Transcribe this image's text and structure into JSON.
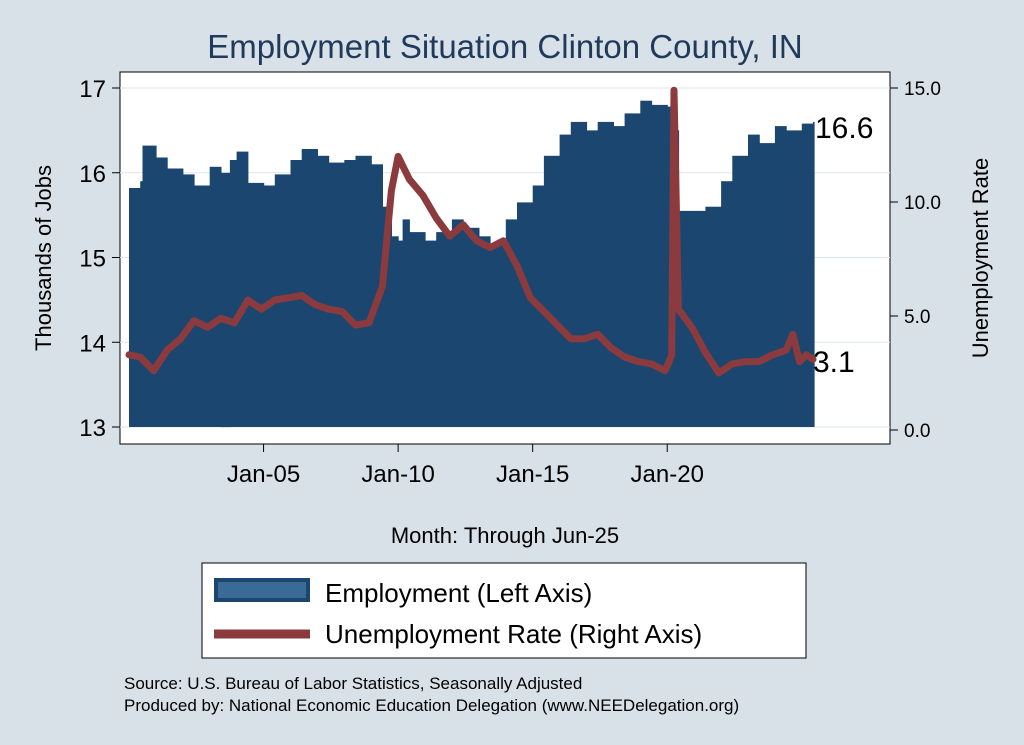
{
  "chart_data": {
    "type": "bar",
    "title": "Employment Situation Clinton  County, IN",
    "xlabel": "Month: Through Jun-25",
    "ylabel_left": "Thousands of Jobs",
    "ylabel_right": "Unemployment Rate",
    "x_ticks": [
      "Jan-05",
      "Jan-10",
      "Jan-15",
      "Jan-20"
    ],
    "y_left_ticks": [
      "13",
      "14",
      "15",
      "16",
      "17"
    ],
    "y_left_range": [
      13,
      17
    ],
    "y_right_ticks": [
      "0.0",
      "5.0",
      "10.0",
      "15.0"
    ],
    "y_right_range": [
      0,
      15
    ],
    "x_range": [
      "2000-01",
      "2025-06"
    ],
    "grid": true,
    "legend_position": "bottom",
    "series": [
      {
        "name": "Employment (Left Axis)",
        "type": "bar",
        "axis": "left",
        "color": "#1b4670",
        "points": [
          [
            "2000-01",
            15.82
          ],
          [
            "2000-06",
            15.9
          ],
          [
            "2000-07",
            16.32
          ],
          [
            "2001-01",
            16.18
          ],
          [
            "2001-06",
            16.05
          ],
          [
            "2002-01",
            15.98
          ],
          [
            "2002-06",
            15.85
          ],
          [
            "2003-01",
            16.07
          ],
          [
            "2003-06",
            16.0
          ],
          [
            "2003-10",
            16.15
          ],
          [
            "2004-01",
            16.25
          ],
          [
            "2004-06",
            15.88
          ],
          [
            "2005-01",
            15.85
          ],
          [
            "2005-06",
            15.98
          ],
          [
            "2006-01",
            16.15
          ],
          [
            "2006-06",
            16.28
          ],
          [
            "2007-01",
            16.2
          ],
          [
            "2007-06",
            16.12
          ],
          [
            "2008-01",
            16.15
          ],
          [
            "2008-06",
            16.2
          ],
          [
            "2009-01",
            16.1
          ],
          [
            "2009-06",
            15.6
          ],
          [
            "2009-10",
            15.25
          ],
          [
            "2010-01",
            15.2
          ],
          [
            "2010-03",
            15.45
          ],
          [
            "2010-06",
            15.3
          ],
          [
            "2011-01",
            15.2
          ],
          [
            "2011-06",
            15.3
          ],
          [
            "2012-01",
            15.45
          ],
          [
            "2012-06",
            15.35
          ],
          [
            "2013-01",
            15.25
          ],
          [
            "2013-06",
            15.15
          ],
          [
            "2014-01",
            15.45
          ],
          [
            "2014-06",
            15.65
          ],
          [
            "2015-01",
            15.85
          ],
          [
            "2015-06",
            16.2
          ],
          [
            "2016-01",
            16.45
          ],
          [
            "2016-06",
            16.6
          ],
          [
            "2017-01",
            16.5
          ],
          [
            "2017-06",
            16.6
          ],
          [
            "2018-01",
            16.55
          ],
          [
            "2018-06",
            16.7
          ],
          [
            "2019-01",
            16.85
          ],
          [
            "2019-06",
            16.8
          ],
          [
            "2020-01",
            16.78
          ],
          [
            "2020-04",
            16.5
          ],
          [
            "2020-06",
            15.55
          ],
          [
            "2021-01",
            15.55
          ],
          [
            "2021-06",
            15.6
          ],
          [
            "2022-01",
            15.9
          ],
          [
            "2022-06",
            16.2
          ],
          [
            "2023-01",
            16.45
          ],
          [
            "2023-06",
            16.35
          ],
          [
            "2024-01",
            16.55
          ],
          [
            "2024-06",
            16.5
          ],
          [
            "2025-01",
            16.58
          ],
          [
            "2025-06",
            16.6
          ]
        ]
      },
      {
        "name": "Unemployment Rate (Right Axis)",
        "type": "line",
        "axis": "right",
        "color": "#8b3a3e",
        "points": [
          [
            "2000-01",
            3.3
          ],
          [
            "2000-06",
            3.2
          ],
          [
            "2000-12",
            2.6
          ],
          [
            "2001-06",
            3.5
          ],
          [
            "2001-12",
            4.0
          ],
          [
            "2002-06",
            4.8
          ],
          [
            "2002-12",
            4.5
          ],
          [
            "2003-06",
            4.9
          ],
          [
            "2003-12",
            4.7
          ],
          [
            "2004-06",
            5.7
          ],
          [
            "2004-12",
            5.3
          ],
          [
            "2005-06",
            5.7
          ],
          [
            "2005-12",
            5.8
          ],
          [
            "2006-06",
            5.9
          ],
          [
            "2006-12",
            5.5
          ],
          [
            "2007-06",
            5.3
          ],
          [
            "2007-12",
            5.2
          ],
          [
            "2008-06",
            4.6
          ],
          [
            "2008-12",
            4.7
          ],
          [
            "2009-03",
            5.5
          ],
          [
            "2009-06",
            6.3
          ],
          [
            "2009-10",
            10.5
          ],
          [
            "2010-01",
            12.0
          ],
          [
            "2010-06",
            11.0
          ],
          [
            "2010-12",
            10.3
          ],
          [
            "2011-06",
            9.3
          ],
          [
            "2011-12",
            8.5
          ],
          [
            "2012-06",
            9.0
          ],
          [
            "2012-12",
            8.3
          ],
          [
            "2013-06",
            8.0
          ],
          [
            "2013-12",
            8.3
          ],
          [
            "2014-06",
            7.2
          ],
          [
            "2014-12",
            5.8
          ],
          [
            "2015-06",
            5.2
          ],
          [
            "2015-12",
            4.6
          ],
          [
            "2016-06",
            4.0
          ],
          [
            "2016-12",
            4.0
          ],
          [
            "2017-06",
            4.2
          ],
          [
            "2017-12",
            3.6
          ],
          [
            "2018-06",
            3.2
          ],
          [
            "2018-12",
            3.0
          ],
          [
            "2019-06",
            2.9
          ],
          [
            "2019-12",
            2.6
          ],
          [
            "2020-01",
            2.8
          ],
          [
            "2020-03",
            3.3
          ],
          [
            "2020-04",
            14.9
          ],
          [
            "2020-06",
            5.3
          ],
          [
            "2020-12",
            4.5
          ],
          [
            "2021-06",
            3.4
          ],
          [
            "2021-12",
            2.5
          ],
          [
            "2022-06",
            2.9
          ],
          [
            "2022-12",
            3.0
          ],
          [
            "2023-06",
            3.0
          ],
          [
            "2023-12",
            3.3
          ],
          [
            "2024-06",
            3.5
          ],
          [
            "2024-09",
            4.2
          ],
          [
            "2024-12",
            3.0
          ],
          [
            "2025-03",
            3.3
          ],
          [
            "2025-06",
            3.1
          ]
        ]
      }
    ],
    "end_labels": {
      "employment": "16.6",
      "unemployment": "3.1"
    }
  },
  "notes": {
    "source": "Source: U.S. Bureau of Labor Statistics, Seasonally Adjusted",
    "producer": "Produced by: National Economic Education Delegation (www.NEEDelegation.org)"
  }
}
